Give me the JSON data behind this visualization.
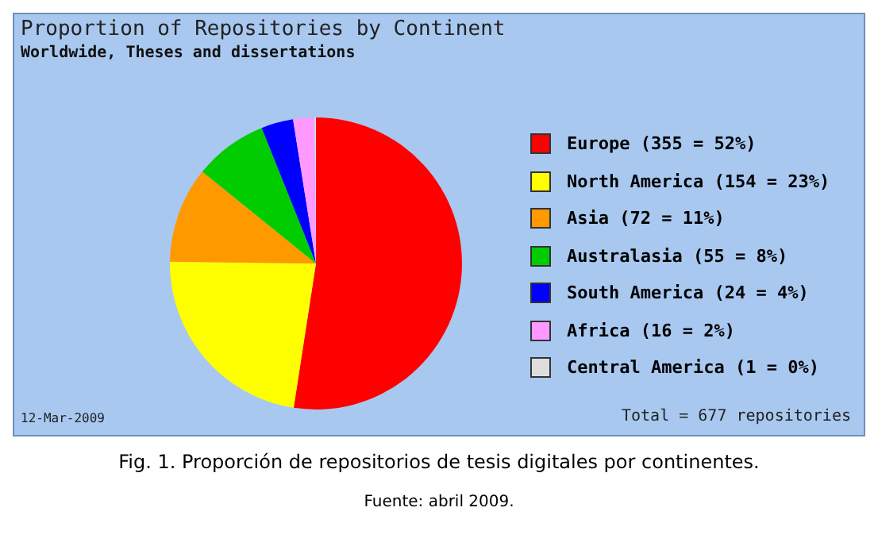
{
  "chart_data": {
    "type": "pie",
    "title": "Proportion of Repositories by Continent",
    "subtitle": "Worldwide, Theses and dissertations",
    "categories": [
      "Europe (355 = 52%)",
      "North America (154 = 23%)",
      "Asia (72 = 11%)",
      "Australasia (55 = 8%)",
      "South America (24 = 4%)",
      "Africa (16 = 2%)",
      "Central America (1 = 0%)"
    ],
    "values": [
      355,
      154,
      72,
      55,
      24,
      16,
      1
    ],
    "colors": [
      "#ff0000",
      "#ffff00",
      "#ff9900",
      "#00cc00",
      "#0000ff",
      "#ff99ff",
      "#dddddd"
    ],
    "legend": "right",
    "annotations": [
      "12-Mar-2009",
      "Total = 677 repositories",
      "Fig. 1. Proporción de repositorios de tesis digitales por continentes.",
      "Fuente: abril 2009."
    ]
  }
}
